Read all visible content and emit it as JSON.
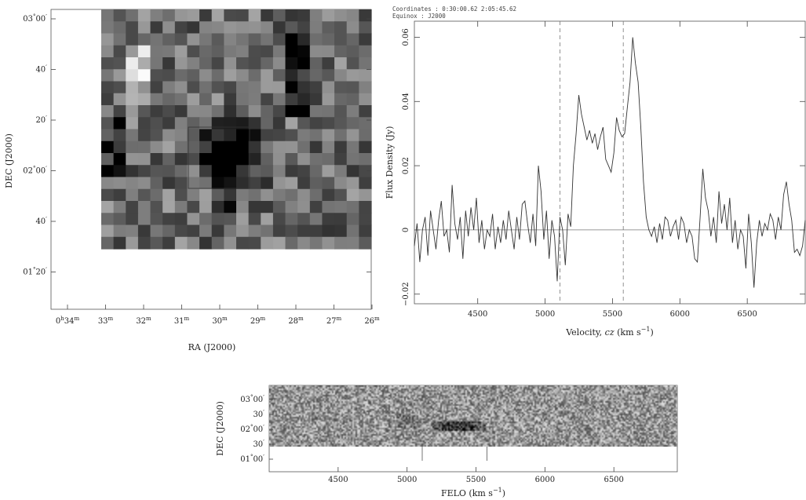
{
  "header": {
    "coordinates_line": "Coordinates : 0:30:00.62    2:05:45.62",
    "equinox_line": "Equinox   : J2000"
  },
  "chart_data": [
    {
      "type": "heatmap",
      "panel": "moment map",
      "colormap": "grayscale",
      "xlabel": "RA (J2000)",
      "ylabel": "DEC (J2000)",
      "x_tick_labels": [
        {
          "base": "0",
          "sup1": "h",
          "mid": "34",
          "sup2": "m"
        },
        {
          "base": "",
          "sup1": "",
          "mid": "33",
          "sup2": "m"
        },
        {
          "base": "",
          "sup1": "",
          "mid": "32",
          "sup2": "m"
        },
        {
          "base": "",
          "sup1": "",
          "mid": "31",
          "sup2": "m"
        },
        {
          "base": "",
          "sup1": "",
          "mid": "30",
          "sup2": "m"
        },
        {
          "base": "",
          "sup1": "",
          "mid": "29",
          "sup2": "m"
        },
        {
          "base": "",
          "sup1": "",
          "mid": "28",
          "sup2": "m"
        },
        {
          "base": "",
          "sup1": "",
          "mid": "27",
          "sup2": "m"
        },
        {
          "base": "",
          "sup1": "",
          "mid": "26",
          "sup2": "m"
        }
      ],
      "y_tick_labels": [
        {
          "deg": "03",
          "dsym": "°",
          "min": "00",
          "msym": "′"
        },
        {
          "deg": "",
          "dsym": "",
          "min": "40",
          "msym": "′"
        },
        {
          "deg": "",
          "dsym": "",
          "min": "20",
          "msym": "′"
        },
        {
          "deg": "02",
          "dsym": "°",
          "min": "00",
          "msym": "′"
        },
        {
          "deg": "",
          "dsym": "",
          "min": "40",
          "msym": "′"
        },
        {
          "deg": "01",
          "dsym": "°",
          "min": "20",
          "msym": "′"
        }
      ],
      "source_box": "square around central dark source",
      "grid_rows": 20,
      "grid_cols": 22
    },
    {
      "type": "line",
      "panel": "spectrum",
      "xlabel": {
        "prefix": "Velocity, ",
        "italic": "cz",
        "suffix": " (km s",
        "sup": "−1",
        "end": ")"
      },
      "ylabel": "Flux Density (Jy)",
      "xlim": [
        4030,
        6930
      ],
      "ylim": [
        -0.023,
        0.065
      ],
      "x_ticks": [
        4500,
        5000,
        5500,
        6000,
        6500
      ],
      "y_ticks": [
        -0.02,
        0,
        0.02,
        0.04,
        0.06
      ],
      "y_tick_labels": [
        "−0.02",
        "0",
        "0.02",
        "0.04",
        "0.06"
      ],
      "zero_line": true,
      "dashed_markers": [
        5110,
        5580
      ],
      "x": [
        4030,
        4050,
        4070,
        4090,
        4110,
        4130,
        4150,
        4170,
        4190,
        4210,
        4230,
        4250,
        4270,
        4290,
        4310,
        4330,
        4350,
        4370,
        4390,
        4410,
        4430,
        4450,
        4470,
        4490,
        4510,
        4530,
        4550,
        4570,
        4590,
        4610,
        4630,
        4650,
        4670,
        4690,
        4710,
        4730,
        4750,
        4770,
        4790,
        4810,
        4830,
        4850,
        4870,
        4890,
        4910,
        4930,
        4950,
        4970,
        4990,
        5010,
        5030,
        5050,
        5070,
        5090,
        5110,
        5130,
        5150,
        5170,
        5190,
        5210,
        5230,
        5250,
        5270,
        5290,
        5310,
        5330,
        5350,
        5370,
        5390,
        5410,
        5430,
        5450,
        5470,
        5490,
        5510,
        5530,
        5550,
        5570,
        5590,
        5610,
        5630,
        5650,
        5670,
        5690,
        5710,
        5730,
        5750,
        5770,
        5790,
        5810,
        5830,
        5850,
        5870,
        5890,
        5910,
        5930,
        5950,
        5970,
        5990,
        6010,
        6030,
        6050,
        6070,
        6090,
        6110,
        6130,
        6150,
        6170,
        6190,
        6210,
        6230,
        6250,
        6270,
        6290,
        6310,
        6330,
        6350,
        6370,
        6390,
        6410,
        6430,
        6450,
        6470,
        6490,
        6510,
        6530,
        6550,
        6570,
        6590,
        6610,
        6630,
        6650,
        6670,
        6690,
        6710,
        6730,
        6750,
        6770,
        6790,
        6810,
        6830,
        6850,
        6870,
        6890,
        6910,
        6930
      ],
      "y": [
        -0.005,
        0.002,
        -0.01,
        0.0,
        0.004,
        -0.008,
        0.006,
        0.0,
        -0.006,
        0.003,
        0.009,
        -0.002,
        0.0,
        -0.007,
        0.014,
        0.002,
        -0.003,
        0.004,
        -0.009,
        0.006,
        -0.002,
        0.007,
        0.0,
        0.01,
        -0.004,
        0.003,
        -0.006,
        0.0,
        -0.002,
        0.005,
        -0.006,
        0.001,
        -0.004,
        0.003,
        -0.003,
        0.006,
        0.0,
        -0.006,
        0.004,
        -0.003,
        0.008,
        0.009,
        0.002,
        -0.004,
        0.005,
        -0.005,
        0.02,
        0.012,
        -0.003,
        0.006,
        -0.009,
        0.003,
        -0.002,
        -0.016,
        0.004,
        0.0,
        -0.011,
        0.005,
        0.001,
        0.02,
        0.03,
        0.042,
        0.036,
        0.032,
        0.028,
        0.031,
        0.027,
        0.03,
        0.025,
        0.029,
        0.032,
        0.022,
        0.02,
        0.018,
        0.024,
        0.035,
        0.031,
        0.029,
        0.03,
        0.038,
        0.046,
        0.06,
        0.052,
        0.046,
        0.032,
        0.015,
        0.004,
        0.0,
        -0.002,
        0.001,
        -0.004,
        0.002,
        -0.003,
        0.004,
        0.003,
        -0.002,
        0.001,
        0.003,
        -0.003,
        0.004,
        0.002,
        -0.004,
        0.0,
        -0.002,
        -0.009,
        -0.01,
        0.004,
        0.019,
        0.01,
        0.006,
        -0.002,
        0.004,
        -0.004,
        0.012,
        0.002,
        0.008,
        0.0,
        0.01,
        -0.004,
        0.003,
        -0.006,
        0.0,
        -0.002,
        -0.012,
        0.005,
        -0.004,
        -0.018,
        -0.004,
        0.003,
        -0.002,
        0.002,
        0.0,
        0.005,
        0.003,
        -0.003,
        0.004,
        0.0,
        0.011,
        0.015,
        0.008,
        0.003,
        -0.007,
        -0.006,
        -0.008,
        -0.005,
        0.003
      ]
    },
    {
      "type": "heatmap",
      "panel": "position-velocity",
      "colormap": "grayscale",
      "xlabel": {
        "text": "FELO (km s",
        "sup": "−1",
        "end": ")"
      },
      "ylabel": "DEC (J2000)",
      "x_ticks": [
        4500,
        5000,
        5500,
        6000,
        6500
      ],
      "xlim": [
        4000,
        6960
      ],
      "y_tick_labels": [
        {
          "deg": "03",
          "dsym": "°",
          "min": "00",
          "msym": "′"
        },
        {
          "deg": "",
          "dsym": "",
          "min": "30",
          "msym": "′"
        },
        {
          "deg": "02",
          "dsym": "°",
          "min": "00",
          "msym": "′"
        },
        {
          "deg": "",
          "dsym": "",
          "min": "30",
          "msym": "′"
        },
        {
          "deg": "01",
          "dsym": "°",
          "min": "00",
          "msym": "′"
        }
      ],
      "markers": [
        5110,
        5580
      ],
      "emission_range": [
        5180,
        5560
      ]
    }
  ]
}
